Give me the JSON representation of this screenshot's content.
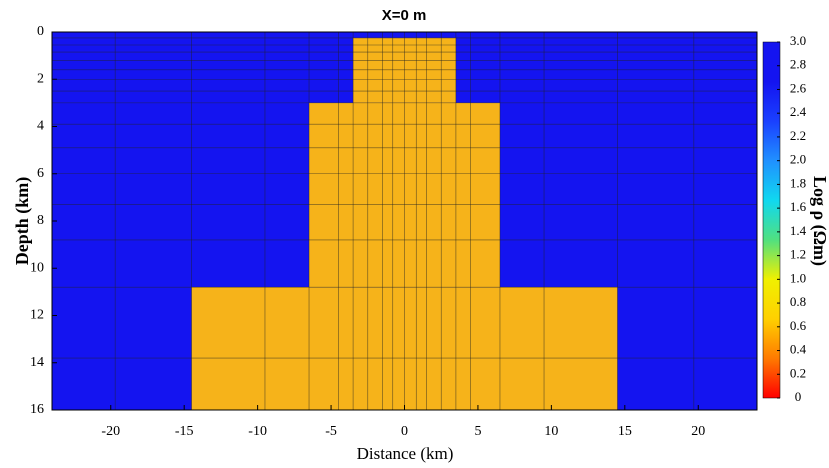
{
  "chart_data": {
    "type": "section",
    "title": "X=0 m",
    "xlabel": "Distance (km)",
    "ylabel": "Depth (km)",
    "colorbar_label": "Log ρ (Ωm)",
    "xlim": [
      -24,
      24
    ],
    "xticks": [
      -20,
      -15,
      -10,
      -5,
      0,
      5,
      10,
      15,
      20
    ],
    "ylim": [
      0,
      16
    ],
    "yticks": [
      0,
      2,
      4,
      6,
      8,
      10,
      12,
      14,
      16
    ],
    "y_inverted": true,
    "regions": [
      {
        "x": [
          -24,
          24
        ],
        "depth": [
          0,
          16
        ],
        "value": 3,
        "color": "#1414f0"
      },
      {
        "x": [
          -3.5,
          3.5
        ],
        "depth": [
          0.25,
          3
        ],
        "value": 0.6,
        "color": "#f6b31a"
      },
      {
        "x": [
          -6.5,
          6.5
        ],
        "depth": [
          3,
          10.8
        ],
        "value": 0.6,
        "color": "#f6b31a"
      },
      {
        "x": [
          -14.5,
          14.5
        ],
        "depth": [
          10.8,
          16
        ],
        "value": 0.6,
        "color": "#f6b31a"
      }
    ],
    "mesh_x": [
      -19.7,
      -14.5,
      -9.5,
      -6.5,
      -4.5,
      -3.5,
      -2.5,
      -1.5,
      -0.8,
      0,
      0.8,
      1.5,
      2.5,
      3.5,
      4.5,
      6.5,
      9.5,
      14.5,
      19.7
    ],
    "mesh_depth": [
      0.25,
      0.55,
      0.85,
      1.2,
      1.6,
      2.0,
      2.5,
      3.0,
      3.9,
      4.9,
      6.0,
      7.3,
      8.8,
      10.8,
      13.8
    ],
    "clim": [
      0,
      3
    ],
    "cticks": [
      0,
      0.2,
      0.4,
      0.6,
      0.8,
      {
        "value": 1,
        "label": "1.0"
      },
      1.2,
      1.4,
      1.6,
      1.8,
      {
        "value": 2,
        "label": "2.0"
      },
      2.2,
      2.4,
      2.6,
      2.8,
      {
        "value": 3,
        "label": "3.0"
      }
    ],
    "colormap": [
      "#ff0000",
      "#ff7a00",
      "#ffd000",
      "#f0f000",
      "#50e080",
      "#10d8f0",
      "#2090ff",
      "#1a40ff",
      "#1414f0",
      "#1414f0"
    ]
  }
}
